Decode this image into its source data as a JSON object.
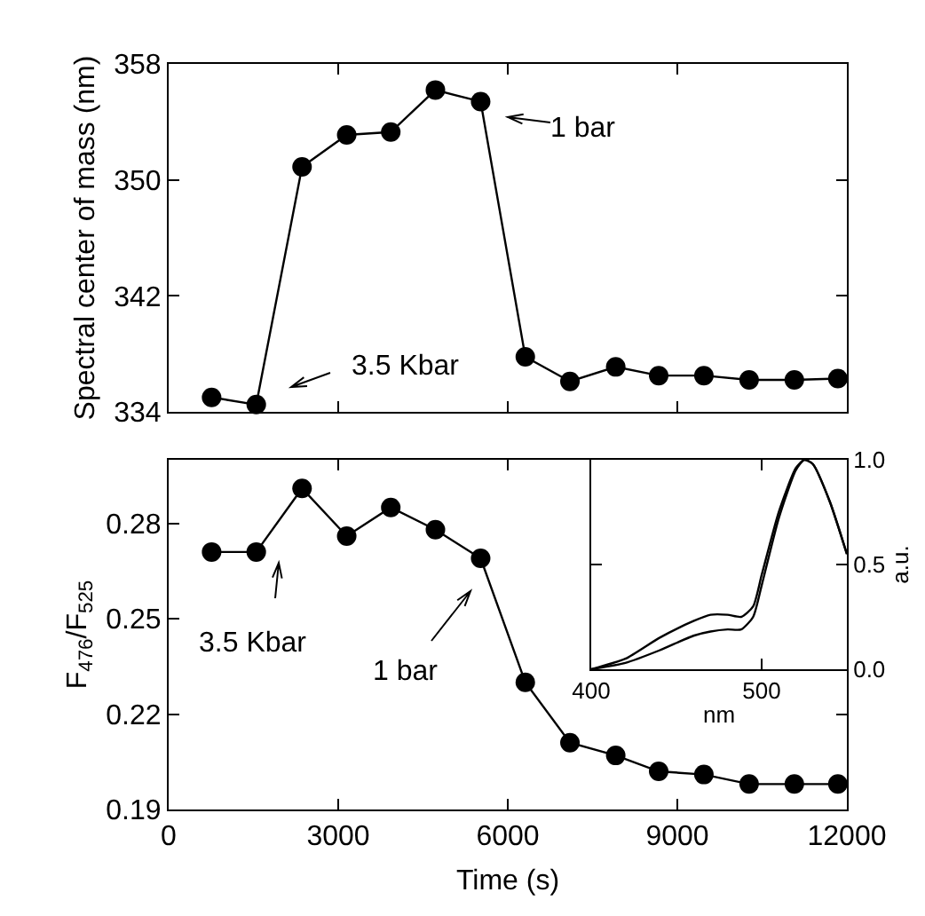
{
  "chart_data": [
    {
      "type": "line",
      "ylabel": "Spectral center of mass (nm)",
      "marker": "circle",
      "grid": false,
      "tick_labels": "y",
      "x": [
        760,
        1550,
        2360,
        3150,
        3930,
        4720,
        5520,
        6310,
        7100,
        7910,
        8670,
        9470,
        10270,
        11070,
        11840
      ],
      "series": [
        {
          "color": "#000000",
          "values": [
            335.0,
            334.5,
            350.9,
            353.1,
            353.3,
            356.2,
            355.4,
            337.8,
            336.1,
            337.1,
            336.5,
            336.5,
            336.2,
            336.2,
            336.3
          ]
        }
      ],
      "xlim": [
        0,
        12000
      ],
      "xticks": [
        {
          "value": 0,
          "label": null
        },
        {
          "value": 3000,
          "label": null
        },
        {
          "value": 6000,
          "label": null
        },
        {
          "value": 9000,
          "label": null
        },
        {
          "value": 12000,
          "label": null
        }
      ],
      "ylim": [
        334,
        358
      ],
      "yticks": [
        334,
        342,
        350,
        358
      ],
      "annotations": [
        "1 bar",
        "3.5 Kbar"
      ]
    },
    {
      "type": "line",
      "xlabel": "Time (s)",
      "ylabel": "F$_{476}$/F$_{525}$",
      "marker": "circle",
      "grid": false,
      "x": [
        760,
        1550,
        2360,
        3150,
        3930,
        4720,
        5520,
        6310,
        7100,
        7910,
        8670,
        9470,
        10270,
        11070,
        11840
      ],
      "series": [
        {
          "color": "#000000",
          "values": [
            0.271,
            0.271,
            0.291,
            0.276,
            0.285,
            0.278,
            0.269,
            0.23,
            0.211,
            0.207,
            0.202,
            0.201,
            0.198,
            0.198,
            0.198
          ]
        }
      ],
      "xlim": [
        0,
        12000
      ],
      "xticks": [
        0,
        3000,
        6000,
        9000,
        12000
      ],
      "ylim": [
        0.19,
        0.3
      ],
      "yticks": [
        0.19,
        0.22,
        0.25,
        0.28
      ],
      "annotations": [
        "3.5 Kbar",
        "1 bar"
      ]
    },
    {
      "type": "line",
      "xlabel": "nm",
      "ylabel": "a.u.",
      "marker": "none",
      "grid": false,
      "x": [
        400,
        420,
        440,
        460,
        470,
        480,
        488,
        495,
        500,
        510,
        520,
        525,
        530,
        540,
        550
      ],
      "series": [
        {
          "color": "#000000",
          "values": [
            0,
            0.05,
            0.15,
            0.23,
            0.26,
            0.26,
            0.25,
            0.3,
            0.45,
            0.75,
            0.96,
            1.0,
            0.98,
            0.8,
            0.55
          ]
        },
        {
          "color": "#000000",
          "values": [
            0,
            0.03,
            0.09,
            0.16,
            0.18,
            0.19,
            0.19,
            0.25,
            0.4,
            0.72,
            0.95,
            1.0,
            0.98,
            0.8,
            0.55
          ]
        }
      ],
      "xlim": [
        400,
        550
      ],
      "xticks": [
        400,
        500
      ],
      "ylim": [
        0,
        1
      ],
      "yticks": [
        {
          "value": 0,
          "label": "0.0"
        },
        {
          "value": 0.5,
          "label": "0.5"
        },
        {
          "value": 1,
          "label": "1.0"
        }
      ]
    }
  ]
}
